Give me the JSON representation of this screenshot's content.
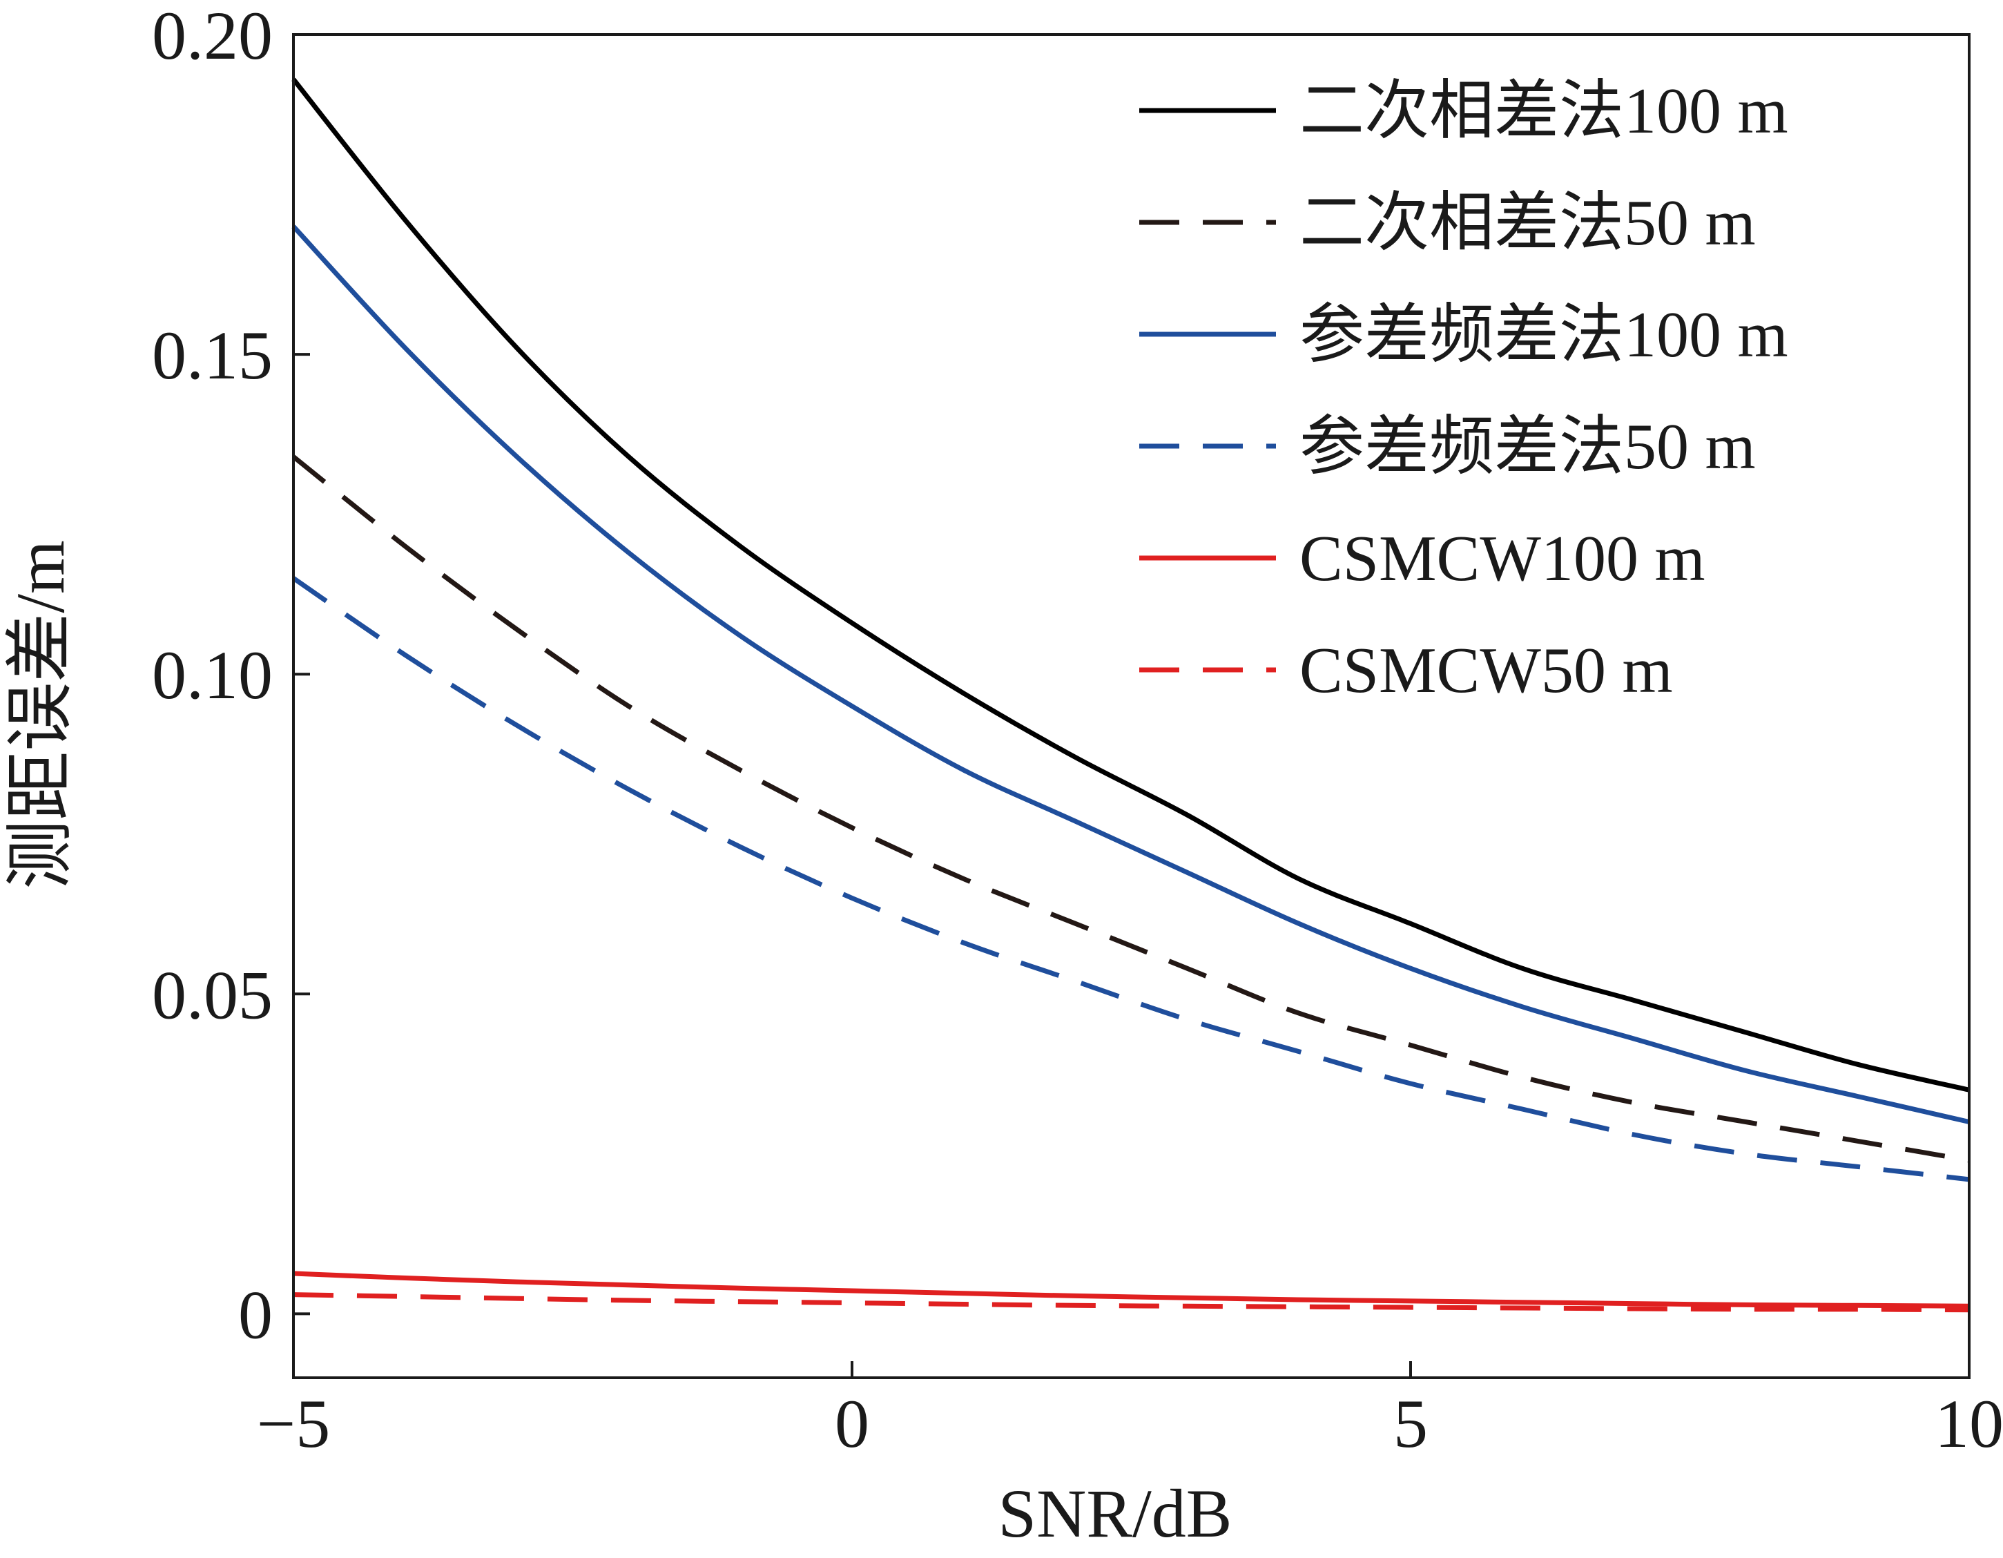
{
  "chart_data": {
    "type": "line",
    "title": "",
    "xlabel": "SNR/dB",
    "ylabel": "测距误差/m",
    "xlim": [
      -5,
      10
    ],
    "ylim": [
      -0.01,
      0.2
    ],
    "xticks": [
      -5,
      0,
      5,
      10
    ],
    "xtick_labels": [
      "−5",
      "0",
      "5",
      "10"
    ],
    "yticks": [
      0,
      0.05,
      0.1,
      0.15,
      0.2
    ],
    "ytick_labels": [
      "0",
      "0.05",
      "0.10",
      "0.15",
      "0.20"
    ],
    "grid": false,
    "legend_position": "top-right",
    "x": [
      -5,
      -4,
      -3,
      -2,
      -1,
      0,
      1,
      2,
      3,
      4,
      5,
      6,
      7,
      8,
      9,
      10
    ],
    "series": [
      {
        "name": "二次相差法100 m",
        "color": "#000000",
        "style": "solid",
        "values": [
          0.193,
          0.171,
          0.151,
          0.134,
          0.12,
          0.108,
          0.097,
          0.087,
          0.078,
          0.068,
          0.061,
          0.054,
          0.049,
          0.044,
          0.039,
          0.035
        ]
      },
      {
        "name": "二次相差法50 m",
        "color": "#231815",
        "style": "dashed",
        "values": [
          0.134,
          0.12,
          0.107,
          0.095,
          0.085,
          0.076,
          0.068,
          0.061,
          0.054,
          0.047,
          0.042,
          0.037,
          0.033,
          0.03,
          0.027,
          0.024
        ]
      },
      {
        "name": "参差频差法100 m",
        "color": "#1f4e9c",
        "style": "solid",
        "values": [
          0.17,
          0.151,
          0.134,
          0.119,
          0.106,
          0.095,
          0.085,
          0.077,
          0.069,
          0.061,
          0.054,
          0.048,
          0.043,
          0.038,
          0.034,
          0.03
        ]
      },
      {
        "name": "参差频差法50 m",
        "color": "#1f4e9c",
        "style": "dashed",
        "values": [
          0.115,
          0.103,
          0.092,
          0.082,
          0.073,
          0.065,
          0.058,
          0.052,
          0.046,
          0.041,
          0.036,
          0.032,
          0.028,
          0.025,
          0.023,
          0.021
        ]
      },
      {
        "name": "CSMCW100 m",
        "color": "#e02020",
        "style": "solid",
        "values": [
          0.0063,
          0.0056,
          0.005,
          0.0045,
          0.004,
          0.0036,
          0.0032,
          0.0028,
          0.0025,
          0.0022,
          0.002,
          0.0018,
          0.0016,
          0.0014,
          0.0013,
          0.0012
        ]
      },
      {
        "name": "CSMCW50 m",
        "color": "#e02020",
        "style": "dashed",
        "values": [
          0.003,
          0.0027,
          0.0024,
          0.0021,
          0.0019,
          0.0017,
          0.0015,
          0.0013,
          0.0012,
          0.0011,
          0.001,
          0.0009,
          0.0008,
          0.0007,
          0.0007,
          0.0006
        ]
      }
    ]
  }
}
